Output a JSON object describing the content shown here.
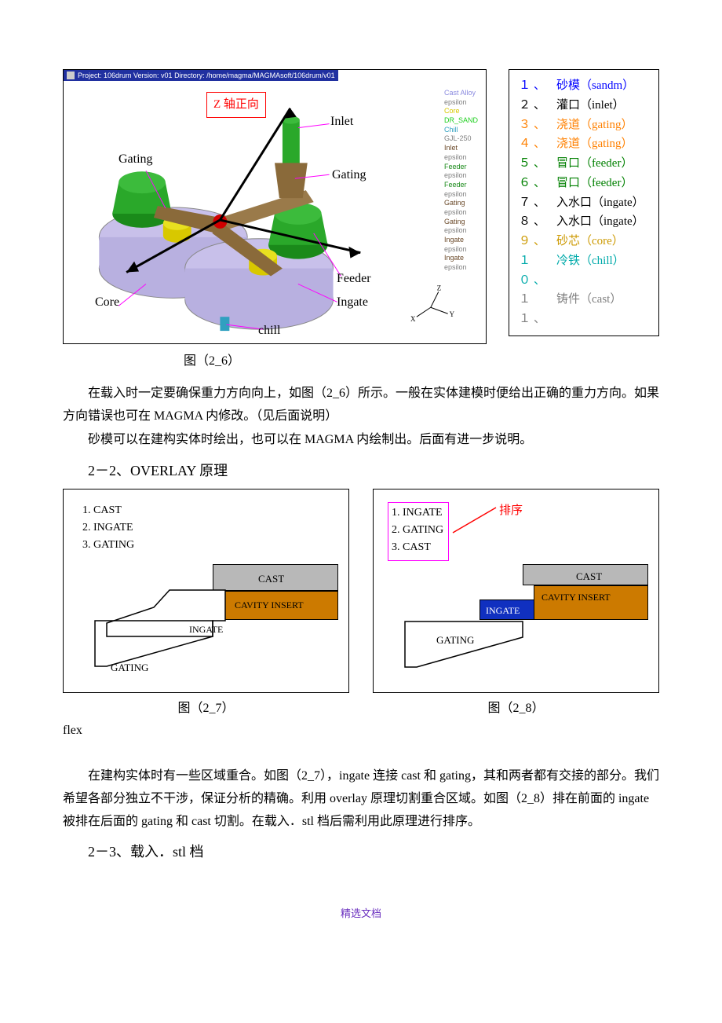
{
  "viewer": {
    "title_line": "Project: 106drum  Version: v01      Directory: /home/magma/MAGMAsoft/106drum/v01",
    "z_axis_label": "Z 轴正向",
    "callouts": {
      "inlet": "Inlet",
      "gating1": "Gating",
      "gating2": "Gating",
      "feeder": "Feeder",
      "ingate": "Ingate",
      "chill": "chill",
      "core": "Core"
    },
    "materials": [
      {
        "text": "Cast Alloy",
        "color": "#8a8adf"
      },
      {
        "text": "epsilon",
        "color": "#808080"
      },
      {
        "text": "Core",
        "color": "#d8c800"
      },
      {
        "text": "DR_SAND",
        "color": "#20d020"
      },
      {
        "text": "Chill",
        "color": "#30a0c0"
      },
      {
        "text": "GJL-250",
        "color": "#808080"
      },
      {
        "text": "Inlet",
        "color": "#6b4a2a"
      },
      {
        "text": "epsilon",
        "color": "#808080"
      },
      {
        "text": "Feeder",
        "color": "#1a8a1a"
      },
      {
        "text": "epsilon",
        "color": "#808080"
      },
      {
        "text": "Feeder",
        "color": "#1a8a1a"
      },
      {
        "text": "epsilon",
        "color": "#808080"
      },
      {
        "text": "Gating",
        "color": "#6b4a2a"
      },
      {
        "text": "epsilon",
        "color": "#808080"
      },
      {
        "text": "Gating",
        "color": "#6b4a2a"
      },
      {
        "text": "epsilon",
        "color": "#808080"
      },
      {
        "text": "Ingate",
        "color": "#6b4a2a"
      },
      {
        "text": "epsilon",
        "color": "#808080"
      },
      {
        "text": "Ingate",
        "color": "#6b4a2a"
      },
      {
        "text": "epsilon",
        "color": "#808080"
      }
    ],
    "axis": {
      "x": "X",
      "y": "Y",
      "z": "Z"
    }
  },
  "legend": [
    {
      "num": "１、",
      "text": "砂模（sandm）",
      "color": "#0000ff"
    },
    {
      "num": "２、",
      "text": "灌口（inlet）",
      "color": "#000000"
    },
    {
      "num": "３、",
      "text": "浇道（gating）",
      "color": "#ff8000"
    },
    {
      "num": "４、",
      "text": "浇道（gating）",
      "color": "#ff8000"
    },
    {
      "num": "５、",
      "text": "冒口（feeder）",
      "color": "#008000"
    },
    {
      "num": "６、",
      "text": "冒口（feeder）",
      "color": "#008000"
    },
    {
      "num": "７、",
      "text": "入水口（ingate）",
      "color": "#000000"
    },
    {
      "num": "８、",
      "text": "入水口（ingate）",
      "color": "#000000"
    },
    {
      "num": "９、",
      "text": "砂芯（core）",
      "color": "#cc9900"
    },
    {
      "num": "１０、",
      "text": "冷铁（chill）",
      "color": "#00aaaa"
    },
    {
      "num": "１１、",
      "text": "铸件（cast）",
      "color": "#808080"
    }
  ],
  "captions": {
    "fig26": "图（2_6）",
    "fig27": "图（2_7）",
    "fig28": "图（2_8）"
  },
  "paragraphs": {
    "p1": "在载入时一定要确保重力方向向上，如图（2_6）所示。一般在实体建模时便给出正确的重力方向。如果方向错误也可在 MAGMA 内修改。（见后面说明）",
    "p2": "砂模可以在建构实体时绘出，也可以在 MAGMA 内绘制出。后面有进一步说明。",
    "p3": "在建构实体时有一些区域重合。如图（2_7），ingate 连接 cast 和 gating，其和两者都有交接的部分。我们希望各部分独立不干涉，保证分析的精确。利用 overlay 原理切割重合区域。如图（2_8）排在前面的 ingate 被排在后面的 gating 和 cast 切割。在载入．stl 档后需利用此原理进行排序。"
  },
  "sections": {
    "s22": "2－2、OVERLAY 原理",
    "s23": "2－3、载入．stl 档"
  },
  "diagram27": {
    "list": [
      "1.   CAST",
      "2.   INGATE",
      "3.   GATING"
    ],
    "labels": {
      "cast": "CAST",
      "cavity": "CAVITY INSERT",
      "ingate": "INGATE",
      "gating": "GATING"
    },
    "colors": {
      "cast": "#b8b8b8",
      "cavity": "#cc7a00",
      "ingate_bg": "#ffffff"
    }
  },
  "diagram28": {
    "list": [
      "1.   INGATE",
      "2.   GATING",
      "3.   CAST"
    ],
    "sort_label": "排序",
    "labels": {
      "cast": "CAST",
      "cavity": "CAVITY INSERT",
      "ingate": "INGATE",
      "gating": "GATING"
    },
    "colors": {
      "cast": "#b8b8b8",
      "cavity": "#cc7a00",
      "ingate_bg": "#1030c0",
      "ingate_text": "#ffffff"
    }
  },
  "footer": "精选文档"
}
